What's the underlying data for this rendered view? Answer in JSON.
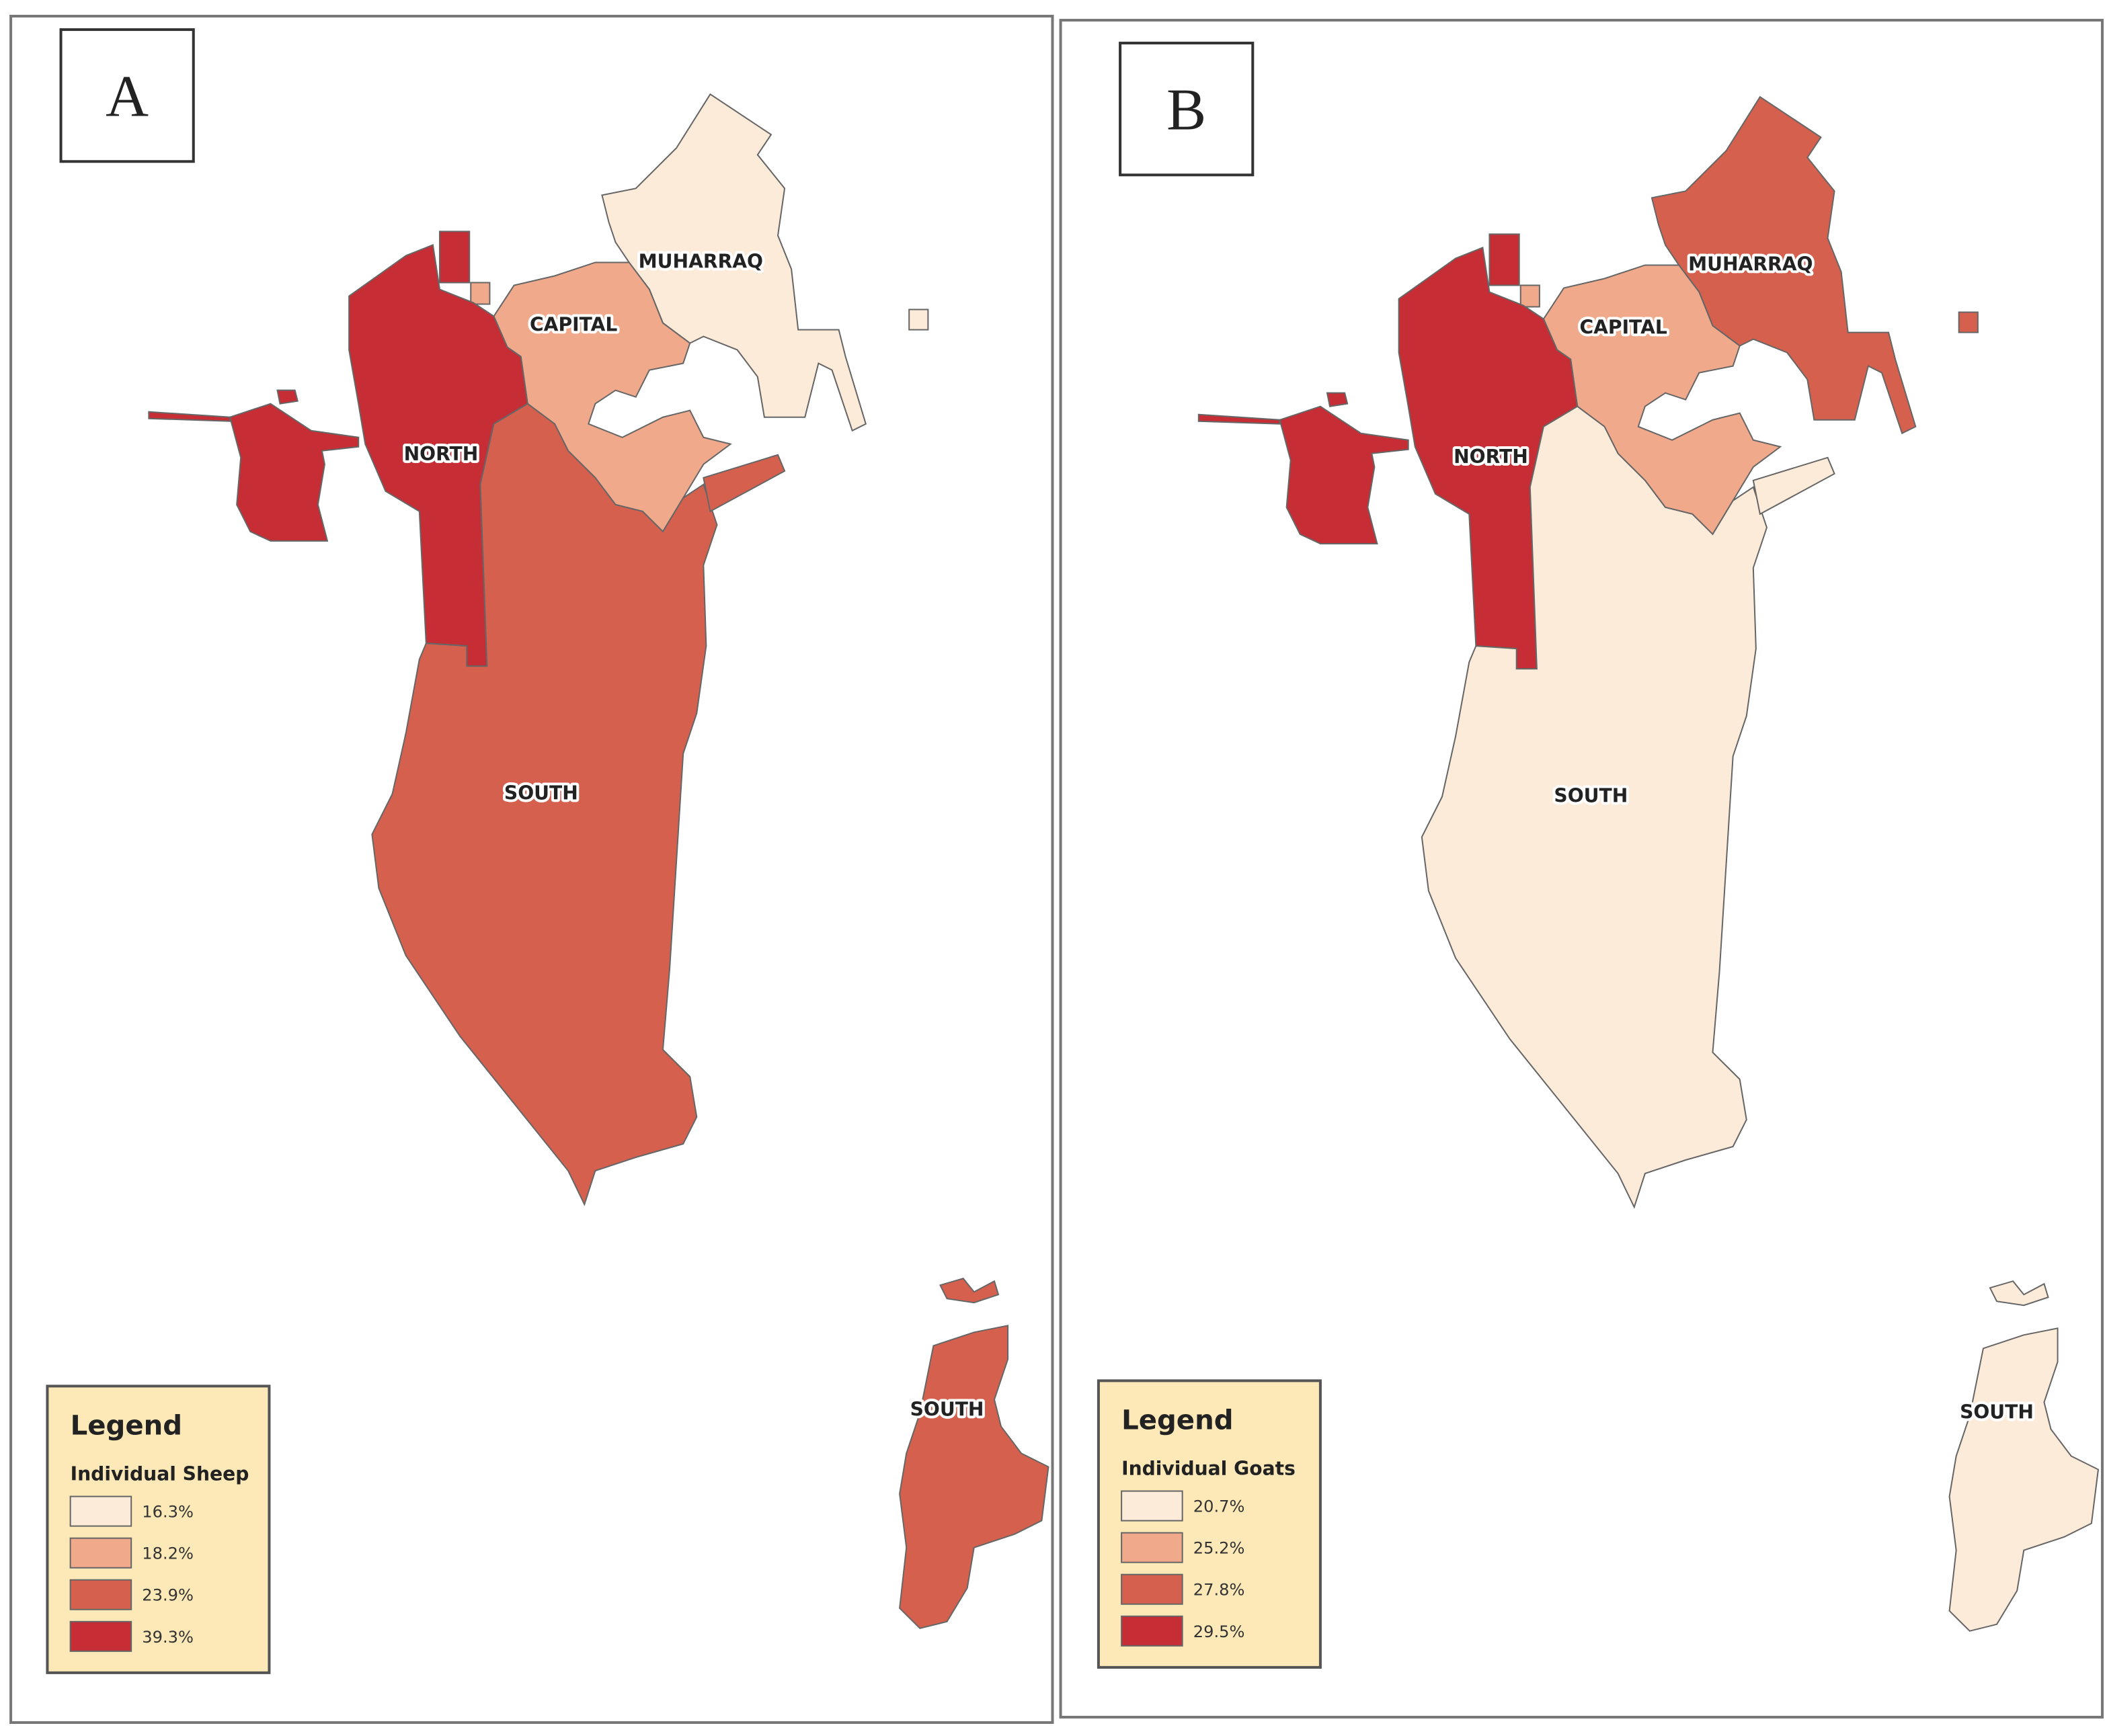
{
  "panels": [
    {
      "label": "A",
      "regions": [
        {
          "name": "MUHARRAQ",
          "color": "#fdebd9"
        },
        {
          "name": "CAPITAL",
          "color": "#f0a98a"
        },
        {
          "name": "NORTH",
          "color": "#c62d34"
        },
        {
          "name": "SOUTH",
          "color": "#d6604e"
        }
      ],
      "inset_label": "SOUTH",
      "legend": {
        "title": "Legend",
        "subtitle": "Individual Sheep",
        "entries": [
          {
            "label": "16.3%",
            "color": "#fdebd9"
          },
          {
            "label": "18.2%",
            "color": "#f0a98a"
          },
          {
            "label": "23.9%",
            "color": "#d6604e"
          },
          {
            "label": "39.3%",
            "color": "#c62d34"
          }
        ]
      }
    },
    {
      "label": "B",
      "regions": [
        {
          "name": "MUHARRAQ",
          "color": "#d6604e"
        },
        {
          "name": "CAPITAL",
          "color": "#f0a98a"
        },
        {
          "name": "NORTH",
          "color": "#c62d34"
        },
        {
          "name": "SOUTH",
          "color": "#fdebd9"
        }
      ],
      "inset_label": "SOUTH",
      "legend": {
        "title": "Legend",
        "subtitle": "Individual Goats",
        "entries": [
          {
            "label": "20.7%",
            "color": "#fdebd9"
          },
          {
            "label": "25.2%",
            "color": "#f0a98a"
          },
          {
            "label": "27.8%",
            "color": "#d6604e"
          },
          {
            "label": "29.5%",
            "color": "#c62d34"
          }
        ]
      }
    }
  ]
}
